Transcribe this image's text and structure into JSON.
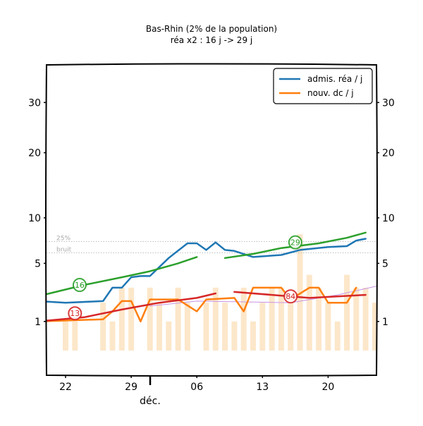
{
  "chart_data": {
    "type": "line",
    "title": "Bas-Rhin (2% de la population)",
    "subtitle": "réa x2 : 16 j -> 29 j",
    "xlabel": "",
    "month_label": "déc.",
    "x_ticks": [
      "22",
      "29",
      "06",
      "13",
      "20"
    ],
    "y_ticks": [
      "1",
      "5",
      "10",
      "20",
      "30"
    ],
    "ylim": [
      0,
      32
    ],
    "grid": false,
    "legend_placement": "top-right",
    "series": [
      {
        "name": "admis. réa / j",
        "color": "#1f77b4",
        "points": [
          [
            -3,
            2.1
          ],
          [
            0,
            2.0
          ],
          [
            4,
            2.1
          ],
          [
            5,
            3.0
          ],
          [
            6,
            3.0
          ],
          [
            7,
            3.8
          ],
          [
            8,
            3.9
          ],
          [
            9,
            3.9
          ],
          [
            11,
            5.5
          ],
          [
            13,
            7.0
          ],
          [
            14,
            7.0
          ],
          [
            15,
            6.3
          ],
          [
            16,
            7.1
          ],
          [
            17,
            6.3
          ],
          [
            18,
            6.2
          ],
          [
            20,
            5.6
          ],
          [
            23,
            5.8
          ],
          [
            25,
            6.3
          ],
          [
            28,
            6.6
          ],
          [
            30,
            6.7
          ],
          [
            31,
            7.3
          ],
          [
            32,
            7.5
          ]
        ]
      },
      {
        "name": "nouv. dc / j",
        "color": "#ff7f0e",
        "points": [
          [
            -3,
            1.0
          ],
          [
            4,
            1.1
          ],
          [
            5,
            1.5
          ],
          [
            6,
            2.1
          ],
          [
            7,
            2.1
          ],
          [
            8,
            1.0
          ],
          [
            9,
            2.2
          ],
          [
            10,
            2.2
          ],
          [
            12,
            2.2
          ],
          [
            14,
            1.5
          ],
          [
            15,
            2.2
          ],
          [
            18,
            2.3
          ],
          [
            19,
            1.5
          ],
          [
            20,
            3.0
          ],
          [
            23,
            3.0
          ],
          [
            24,
            2.2
          ],
          [
            26,
            3.0
          ],
          [
            27,
            3.0
          ],
          [
            28,
            2.0
          ],
          [
            30,
            2.0
          ],
          [
            31,
            3.0
          ]
        ]
      }
    ],
    "trend_lines": [
      {
        "color": "#2ca02c",
        "points": [
          [
            -3,
            2.4
          ],
          [
            2,
            3.2
          ],
          [
            6,
            3.8
          ],
          [
            9,
            4.3
          ],
          [
            12,
            5.0
          ],
          [
            14,
            5.6
          ]
        ]
      },
      {
        "color": "#2ca02c",
        "points": [
          [
            17,
            5.5
          ],
          [
            20,
            5.9
          ],
          [
            23,
            6.5
          ],
          [
            27,
            7.0
          ],
          [
            30,
            7.6
          ],
          [
            32,
            8.2
          ]
        ]
      },
      {
        "color": "#d62728",
        "points": [
          [
            -3,
            1.0
          ],
          [
            2,
            1.2
          ],
          [
            6,
            1.6
          ],
          [
            10,
            2.0
          ],
          [
            14,
            2.3
          ],
          [
            16,
            2.6
          ]
        ]
      },
      {
        "color": "#d62728",
        "points": [
          [
            18,
            2.7
          ],
          [
            22,
            2.5
          ],
          [
            26,
            2.3
          ],
          [
            32,
            2.5
          ]
        ]
      }
    ],
    "purple_line": {
      "color": "#c794e6",
      "points": [
        [
          9,
          1.8
        ],
        [
          14,
          2.1
        ],
        [
          24,
          2.0
        ],
        [
          29,
          2.5
        ],
        [
          35,
          3.4
        ]
      ]
    },
    "bars": {
      "color": "#fbe3c1",
      "x": [
        -1,
        0,
        1,
        2,
        3,
        4,
        5,
        6,
        7,
        8,
        9,
        10,
        11,
        12,
        13,
        14,
        15,
        16,
        17,
        18,
        19,
        20,
        21,
        22,
        23,
        24,
        25,
        26,
        27,
        28,
        29,
        30,
        31,
        32,
        33,
        34,
        35
      ],
      "values": [
        0,
        1,
        1,
        0,
        0,
        2,
        1,
        3,
        3,
        0,
        3,
        2,
        1,
        3,
        2,
        0,
        2,
        3,
        2,
        1,
        3,
        1,
        2,
        3,
        3,
        2,
        8,
        4,
        3,
        2,
        1,
        4,
        3,
        3,
        2,
        5,
        4
      ]
    },
    "ref_lines": [
      {
        "label": "25%",
        "value": 7.2
      },
      {
        "label": "bruit",
        "value": 6.0
      }
    ],
    "badges": [
      {
        "text": "16",
        "x": 1.5,
        "y": 3.2,
        "color": "#2ca02c"
      },
      {
        "text": "13",
        "x": 1.0,
        "y": 1.4,
        "color": "#d62728"
      },
      {
        "text": "29",
        "x": 24.5,
        "y": 7.1,
        "color": "#2ca02c"
      },
      {
        "text": "84",
        "x": 24.0,
        "y": 2.4,
        "color": "#d62728"
      }
    ]
  }
}
